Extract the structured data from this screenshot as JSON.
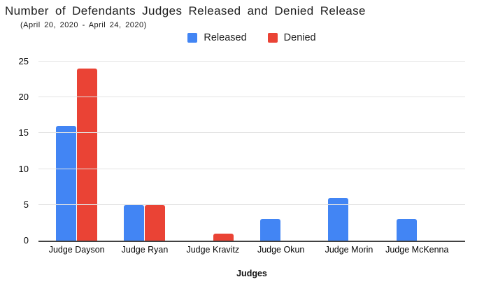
{
  "chart_data": {
    "type": "bar",
    "title": "Number of Defendants Judges Released and Denied Release",
    "subtitle": "(April 20, 2020 - April 24, 2020)",
    "categories": [
      "Judge Dayson",
      "Judge Ryan",
      "Judge Kravitz",
      "Judge Okun",
      "Judge Morin",
      "Judge McKenna"
    ],
    "series": [
      {
        "name": "Released",
        "color": "#4285F4",
        "values": [
          16,
          5,
          0,
          3,
          6,
          3
        ]
      },
      {
        "name": "Denied",
        "color": "#EA4335",
        "values": [
          24,
          5,
          1,
          0,
          0,
          0
        ]
      }
    ],
    "xlabel": "Judges",
    "ylabel": "",
    "ylim": [
      0,
      25
    ],
    "yticks": [
      0,
      5,
      10,
      15,
      20,
      25
    ],
    "grid": true,
    "legend_position": "top-center",
    "colors": {
      "background": "#ffffff",
      "gridline": "#e3e3e3",
      "axis_line": "#424242",
      "title_text": "#212121",
      "label_text": "#050505"
    }
  }
}
